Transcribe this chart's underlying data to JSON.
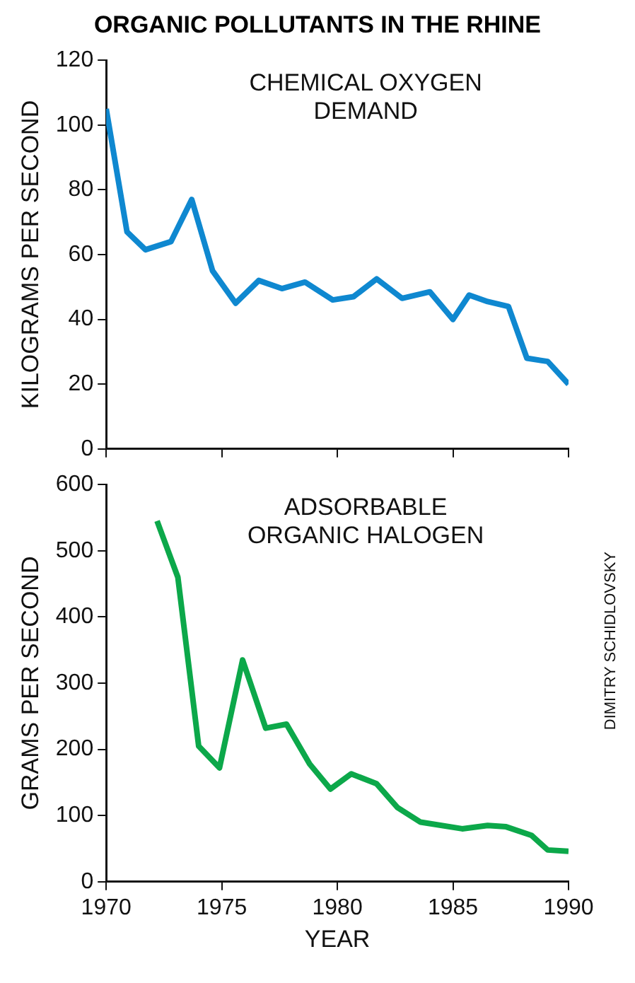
{
  "chart_data": [
    {
      "type": "line",
      "title": "ORGANIC POLLUTANTS IN THE RHINE",
      "ylabel": "KILOGRAMS PER SECOND",
      "annotations": [
        "CHEMICAL OXYGEN\nDEMAND"
      ],
      "xlim": [
        1970,
        1990
      ],
      "xticks": [
        1970,
        1975,
        1980,
        1985,
        1990
      ],
      "ylim": [
        0,
        120
      ],
      "yticks": [
        0,
        20,
        40,
        60,
        80,
        100,
        120
      ],
      "tick_labels": "y",
      "grid": false,
      "marker": "none",
      "series": [
        {
          "color": "#0f88d0",
          "x": [
            1970,
            1970.9,
            1971.7,
            1972.8,
            1973.7,
            1974.6,
            1975.6,
            1976.6,
            1977.6,
            1978.6,
            1979.8,
            1980.7,
            1981.7,
            1982.8,
            1984,
            1985,
            1985.7,
            1986.5,
            1987.4,
            1988.2,
            1989.1,
            1990
          ],
          "values": [
            105,
            67,
            61.5,
            64,
            77,
            55,
            45,
            52,
            49.5,
            51.5,
            46,
            47,
            52.5,
            46.5,
            48.5,
            40,
            47.5,
            45.5,
            44,
            28,
            27,
            20
          ]
        }
      ]
    },
    {
      "type": "line",
      "xlabel": "YEAR",
      "ylabel": "GRAMS PER SECOND",
      "annotations": [
        "ADSORBABLE\nORGANIC HALOGEN",
        "DIMITRY SCHIDLOVSKY"
      ],
      "xlim": [
        1970,
        1990
      ],
      "xticks": [
        1970,
        1975,
        1980,
        1985,
        1990
      ],
      "ylim": [
        0,
        600
      ],
      "yticks": [
        0,
        100,
        200,
        300,
        400,
        500,
        600
      ],
      "grid": false,
      "marker": "none",
      "series": [
        {
          "color": "#0ca84a",
          "x": [
            1972.2,
            1973.1,
            1974,
            1974.9,
            1975.9,
            1976.9,
            1977.8,
            1978.8,
            1979.7,
            1980.6,
            1981.7,
            1982.6,
            1983.6,
            1985.4,
            1986.5,
            1987.3,
            1988.4,
            1989.1,
            1990
          ],
          "values": [
            545,
            460,
            205,
            172,
            335,
            232,
            238,
            178,
            140,
            163,
            148,
            112,
            90,
            80,
            85,
            83,
            70,
            48,
            46
          ]
        }
      ]
    }
  ]
}
